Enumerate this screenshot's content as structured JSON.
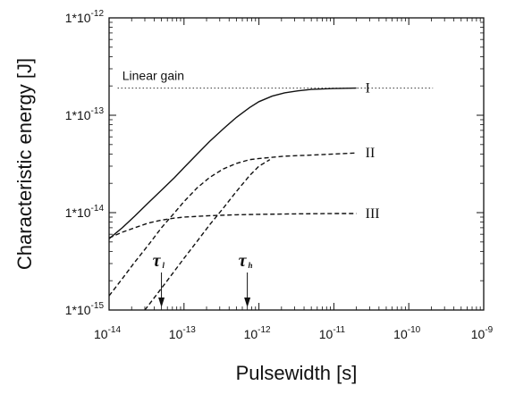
{
  "chart_data": {
    "type": "line",
    "x_scale": "log",
    "y_scale": "log",
    "xlim": [
      1e-14,
      1e-09
    ],
    "ylim": [
      1e-15,
      1e-12
    ],
    "xlabel": "Pulsewidth [s]",
    "ylabel": "Characteristic energy [J]",
    "x_ticks": [
      {
        "value": 1e-14,
        "base": "10",
        "exp": "-14"
      },
      {
        "value": 1e-13,
        "base": "10",
        "exp": "-13"
      },
      {
        "value": 1e-12,
        "base": "10",
        "exp": "-12"
      },
      {
        "value": 1e-11,
        "base": "10",
        "exp": "-11"
      },
      {
        "value": 1e-10,
        "base": "10",
        "exp": "-10"
      },
      {
        "value": 1e-09,
        "base": "10",
        "exp": "-9"
      }
    ],
    "y_ticks": [
      {
        "value": 1e-15,
        "base": "1*10",
        "exp": "-15"
      },
      {
        "value": 1e-14,
        "base": "1*10",
        "exp": "-14"
      },
      {
        "value": 1e-13,
        "base": "1*10",
        "exp": "-13"
      },
      {
        "value": 1e-12,
        "base": "1*10",
        "exp": "-12"
      }
    ],
    "reference_line": {
      "label": "Linear gain",
      "y": 1.9e-13,
      "style": "dotted"
    },
    "series": [
      {
        "name": "I",
        "style": "solid",
        "points": [
          [
            1e-14,
            5.4e-15
          ],
          [
            1.5e-14,
            7e-15
          ],
          [
            2.2e-14,
            9.2e-15
          ],
          [
            3.3e-14,
            1.25e-14
          ],
          [
            5e-14,
            1.7e-14
          ],
          [
            7.5e-14,
            2.3e-14
          ],
          [
            1e-13,
            2.9e-14
          ],
          [
            1.5e-13,
            4e-14
          ],
          [
            2.2e-13,
            5.4e-14
          ],
          [
            3.3e-13,
            7.2e-14
          ],
          [
            5e-13,
            9.5e-14
          ],
          [
            7.5e-13,
            1.2e-13
          ],
          [
            1e-12,
            1.38e-13
          ],
          [
            1.5e-12,
            1.57e-13
          ],
          [
            2.2e-12,
            1.7e-13
          ],
          [
            3.3e-12,
            1.78e-13
          ],
          [
            5e-12,
            1.84e-13
          ],
          [
            1e-11,
            1.88e-13
          ],
          [
            2e-11,
            1.9e-13
          ]
        ]
      },
      {
        "name": "II",
        "style": "dashed",
        "points": [
          [
            1e-14,
            1.4e-15
          ],
          [
            1.5e-14,
            2.1e-15
          ],
          [
            2.2e-14,
            3.1e-15
          ],
          [
            3.3e-14,
            4.6e-15
          ],
          [
            5e-14,
            7e-15
          ],
          [
            7.5e-14,
            1e-14
          ],
          [
            1e-13,
            1.3e-14
          ],
          [
            1.5e-13,
            1.8e-14
          ],
          [
            2.2e-13,
            2.3e-14
          ],
          [
            3.3e-13,
            2.8e-14
          ],
          [
            5e-13,
            3.2e-14
          ],
          [
            7.5e-13,
            3.5e-14
          ],
          [
            1e-12,
            3.6e-14
          ],
          [
            1.5e-12,
            3.7e-14
          ],
          [
            2.2e-12,
            3.8e-14
          ],
          [
            5e-12,
            3.9e-14
          ],
          [
            1e-11,
            4e-14
          ],
          [
            2e-11,
            4.1e-14
          ]
        ]
      },
      {
        "name": "II",
        "style": "dashed",
        "points": [
          [
            3e-14,
            1e-15
          ],
          [
            4.5e-14,
            1.5e-15
          ],
          [
            6.7e-14,
            2.25e-15
          ],
          [
            1e-13,
            3.4e-15
          ],
          [
            1.5e-13,
            5.1e-15
          ],
          [
            2.2e-13,
            7.5e-15
          ],
          [
            3.3e-13,
            1.1e-14
          ],
          [
            5e-13,
            1.65e-14
          ],
          [
            7.5e-13,
            2.4e-14
          ],
          [
            1e-12,
            3e-14
          ],
          [
            1.4e-12,
            3.5e-14
          ]
        ]
      },
      {
        "name": "III",
        "style": "dashed",
        "points": [
          [
            1e-14,
            5.5e-15
          ],
          [
            1.5e-14,
            6.3e-15
          ],
          [
            2.2e-14,
            7e-15
          ],
          [
            3.3e-14,
            7.8e-15
          ],
          [
            5e-14,
            8.4e-15
          ],
          [
            7.5e-14,
            8.8e-15
          ],
          [
            1e-13,
            9e-15
          ],
          [
            2.2e-13,
            9.3e-15
          ],
          [
            5e-13,
            9.5e-15
          ],
          [
            1e-12,
            9.6e-15
          ],
          [
            3e-12,
            9.7e-15
          ],
          [
            1e-11,
            9.8e-15
          ],
          [
            2e-11,
            9.8e-15
          ]
        ]
      }
    ],
    "annotations": [
      {
        "symbol": "τ",
        "subscript": "l",
        "x": 5e-14
      },
      {
        "symbol": "τ",
        "subscript": "h",
        "x": 7e-13
      }
    ]
  }
}
